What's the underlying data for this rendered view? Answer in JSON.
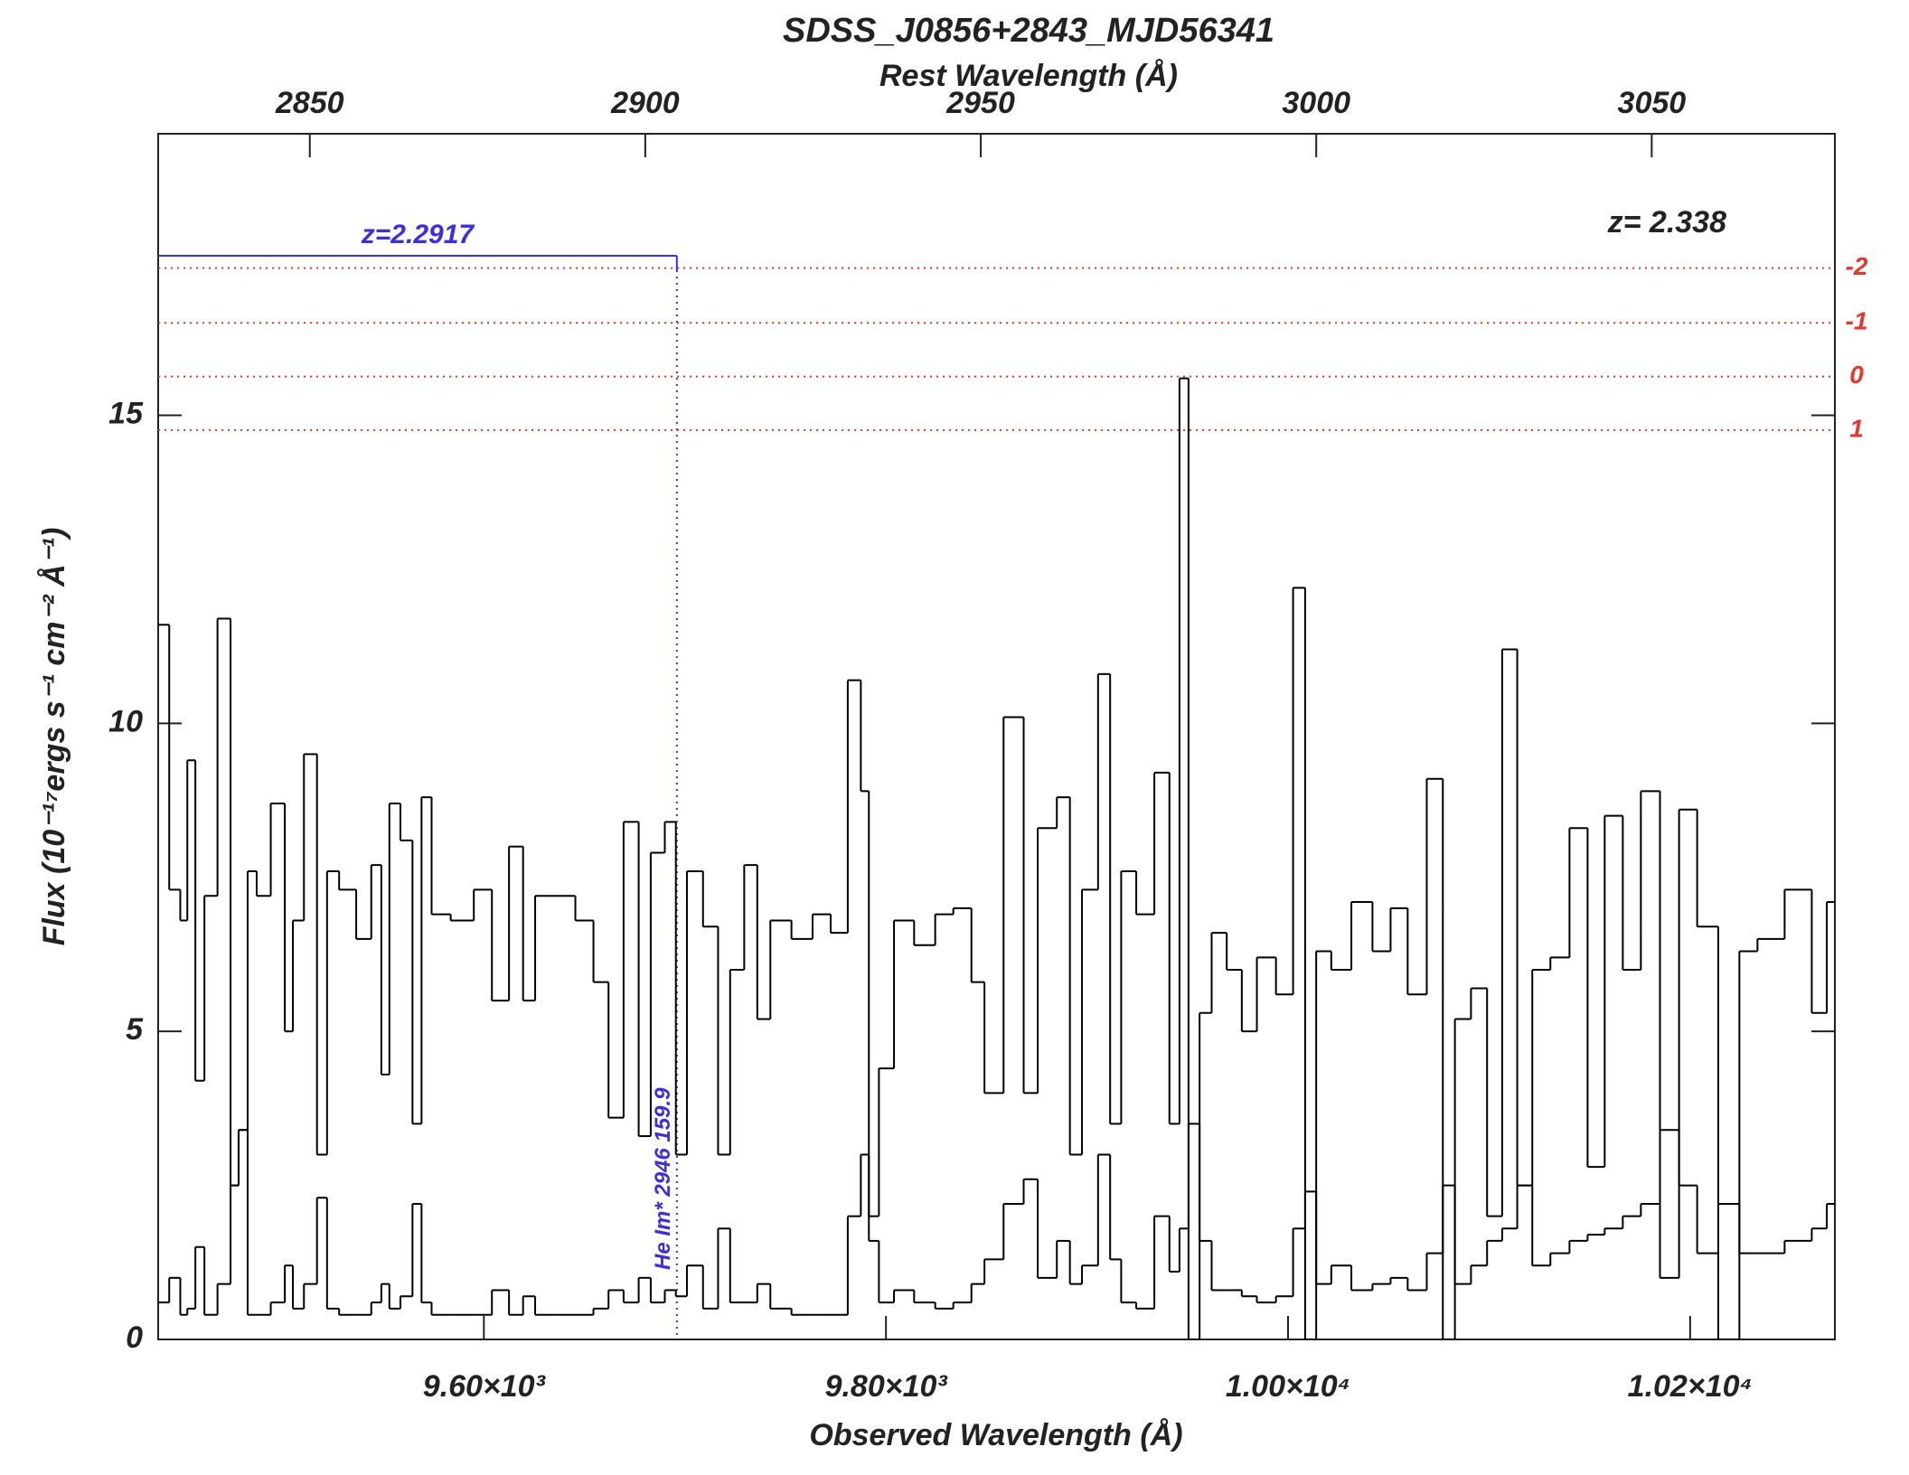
{
  "chart_data": {
    "type": "line",
    "title": "SDSS_J0856+2843_MJD56341",
    "xlabel": "Observed Wavelength (Å)",
    "ylabel": "Flux (10⁻¹⁷ergs s⁻¹ cm⁻² Å⁻¹)",
    "xlim": [
      9438,
      10272
    ],
    "ylim": [
      0,
      19.57
    ],
    "xticks": [
      {
        "value": 9600,
        "label": "9.60×10³"
      },
      {
        "value": 9800,
        "label": "9.80×10³"
      },
      {
        "value": 10000,
        "label": "1.00×10⁴"
      },
      {
        "value": 10200,
        "label": "1.02×10⁴"
      }
    ],
    "yticks": [
      0,
      5,
      10,
      15
    ],
    "top_axis": {
      "label": "Rest Wavelength (Å)",
      "xlim": [
        2827.4,
        3077.3
      ],
      "xticks": [
        2850,
        2900,
        2950,
        3000,
        3050
      ]
    },
    "annotation": "z= 2.338",
    "reference_lines": {
      "color": "#e8352e",
      "lines": [
        {
          "label": "-2",
          "value": 17.39
        },
        {
          "label": "-1",
          "value": 16.5
        },
        {
          "label": "0",
          "value": 15.63
        },
        {
          "label": "1",
          "value": 14.76
        }
      ]
    },
    "line_marker": {
      "color": "#3a2ee8",
      "label": "z=2.2917",
      "x": 9696,
      "y": 17.59,
      "line_label": "He Im* 2946 159.9"
    },
    "x": [
      9440,
      9447,
      9451,
      9454,
      9459,
      9463,
      9472,
      9476,
      9480,
      9485,
      9489,
      9499,
      9503,
      9507,
      9514,
      9520,
      9524,
      9532,
      9541,
      9547,
      9551,
      9555,
      9562,
      9567,
      9571,
      9577,
      9590,
      9600,
      9608,
      9617,
      9622,
      9629,
      9641,
      9650,
      9659,
      9665,
      9674,
      9680,
      9686,
      9694,
      9697,
      9705,
      9713,
      9720,
      9725,
      9734,
      9738,
      9747,
      9759,
      9768,
      9777,
      9785,
      9790,
      9793,
      9800,
      9808,
      9820,
      9829,
      9838,
      9847,
      9851,
      9866,
      9871,
      9880,
      9890,
      9893,
      9902,
      9909,
      9914,
      9920,
      9929,
      9938,
      9944,
      9948,
      9953,
      9959,
      9965,
      9974,
      9980,
      9989,
      9999,
      10006,
      10011,
      10017,
      10026,
      10037,
      10047,
      10055,
      10064,
      10074,
      10080,
      10086,
      10096,
      10102,
      10111,
      10117,
      10126,
      10135,
      10145,
      10153,
      10162,
      10171,
      10180,
      10190,
      10199,
      10208,
      10220,
      10229,
      10238,
      10256,
      10265,
      10271
    ],
    "series": [
      {
        "color": "#000000",
        "values": [
          11.6,
          7.3,
          6.8,
          9.4,
          4.2,
          7.2,
          11.7,
          2.5,
          3.4,
          7.6,
          7.2,
          8.7,
          5.0,
          6.8,
          9.5,
          3.0,
          7.6,
          7.3,
          6.5,
          7.7,
          4.3,
          8.7,
          8.1,
          3.5,
          8.8,
          6.9,
          6.8,
          7.3,
          5.5,
          8.0,
          5.5,
          7.2,
          7.2,
          6.8,
          5.8,
          3.6,
          8.4,
          3.3,
          7.9,
          8.4,
          3.0,
          7.6,
          6.7,
          3.0,
          6.0,
          7.7,
          5.2,
          6.8,
          6.5,
          6.9,
          6.6,
          10.7,
          8.9,
          2.0,
          4.4,
          6.8,
          6.4,
          6.9,
          7.0,
          5.8,
          4.0,
          10.1,
          4.0,
          8.3,
          8.8,
          3.0,
          7.3,
          10.8,
          3.5,
          7.6,
          6.9,
          9.2,
          3.5,
          15.6,
          0.0,
          5.3,
          6.6,
          6.0,
          5.0,
          6.2,
          5.6,
          12.2,
          0.0,
          6.3,
          6.0,
          7.1,
          6.3,
          7.0,
          5.6,
          9.1,
          0.0,
          5.2,
          5.7,
          2.0,
          11.2,
          2.5,
          6.0,
          6.2,
          8.3,
          2.8,
          8.5,
          6.0,
          8.9,
          1.0,
          8.6,
          6.7,
          0.0,
          6.3,
          6.5,
          7.3,
          5.3,
          7.1
        ]
      },
      {
        "color": "#000000",
        "values": [
          0.6,
          1.0,
          0.4,
          0.5,
          1.5,
          0.4,
          0.9,
          2.5,
          3.4,
          0.4,
          0.4,
          0.6,
          1.2,
          0.5,
          0.9,
          2.3,
          0.5,
          0.4,
          0.4,
          0.6,
          0.9,
          0.5,
          0.7,
          2.2,
          0.6,
          0.4,
          0.4,
          0.4,
          0.8,
          0.4,
          0.7,
          0.4,
          0.4,
          0.4,
          0.5,
          0.8,
          0.6,
          1.0,
          0.6,
          0.8,
          0.7,
          1.2,
          0.5,
          1.8,
          0.6,
          0.6,
          0.9,
          0.5,
          0.4,
          0.4,
          0.4,
          2.0,
          3.0,
          1.6,
          0.6,
          0.8,
          0.6,
          0.5,
          0.6,
          0.9,
          1.3,
          2.2,
          2.6,
          1.0,
          1.6,
          0.9,
          1.2,
          3.0,
          1.3,
          0.6,
          0.5,
          2.0,
          1.1,
          1.8,
          3.5,
          1.6,
          0.8,
          0.8,
          0.7,
          0.6,
          0.7,
          1.8,
          2.4,
          0.9,
          1.2,
          0.8,
          0.9,
          1.0,
          0.8,
          1.4,
          2.5,
          0.9,
          1.2,
          1.6,
          1.8,
          2.5,
          1.2,
          1.4,
          1.6,
          1.7,
          1.8,
          2.0,
          2.2,
          3.4,
          2.5,
          1.4,
          2.2,
          1.4,
          1.4,
          1.6,
          1.8,
          2.2
        ]
      }
    ]
  }
}
